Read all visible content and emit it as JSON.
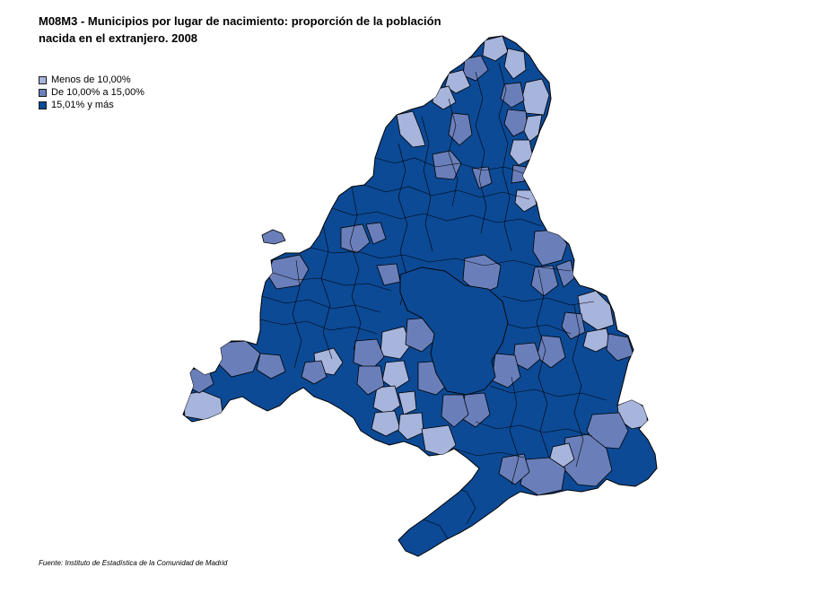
{
  "title_line1": "M08M3 - Municipios por lugar de nacimiento:  proporción de la población",
  "title_line2": "nacida en el extranjero. 2008",
  "legend": [
    {
      "label": "Menos de 10,00%",
      "color": "#a7b4dc"
    },
    {
      "label": "De 10,00% a 15,00%",
      "color": "#6a7fba"
    },
    {
      "label": "15,01% y más",
      "color": "#0c4a96"
    }
  ],
  "source": "Fuente: Instituto de Estadística de la Comunidad de Madrid",
  "colors": {
    "border": "#000000",
    "low": "#a7b4dc",
    "mid": "#6a7fba",
    "high": "#0c4a96"
  }
}
